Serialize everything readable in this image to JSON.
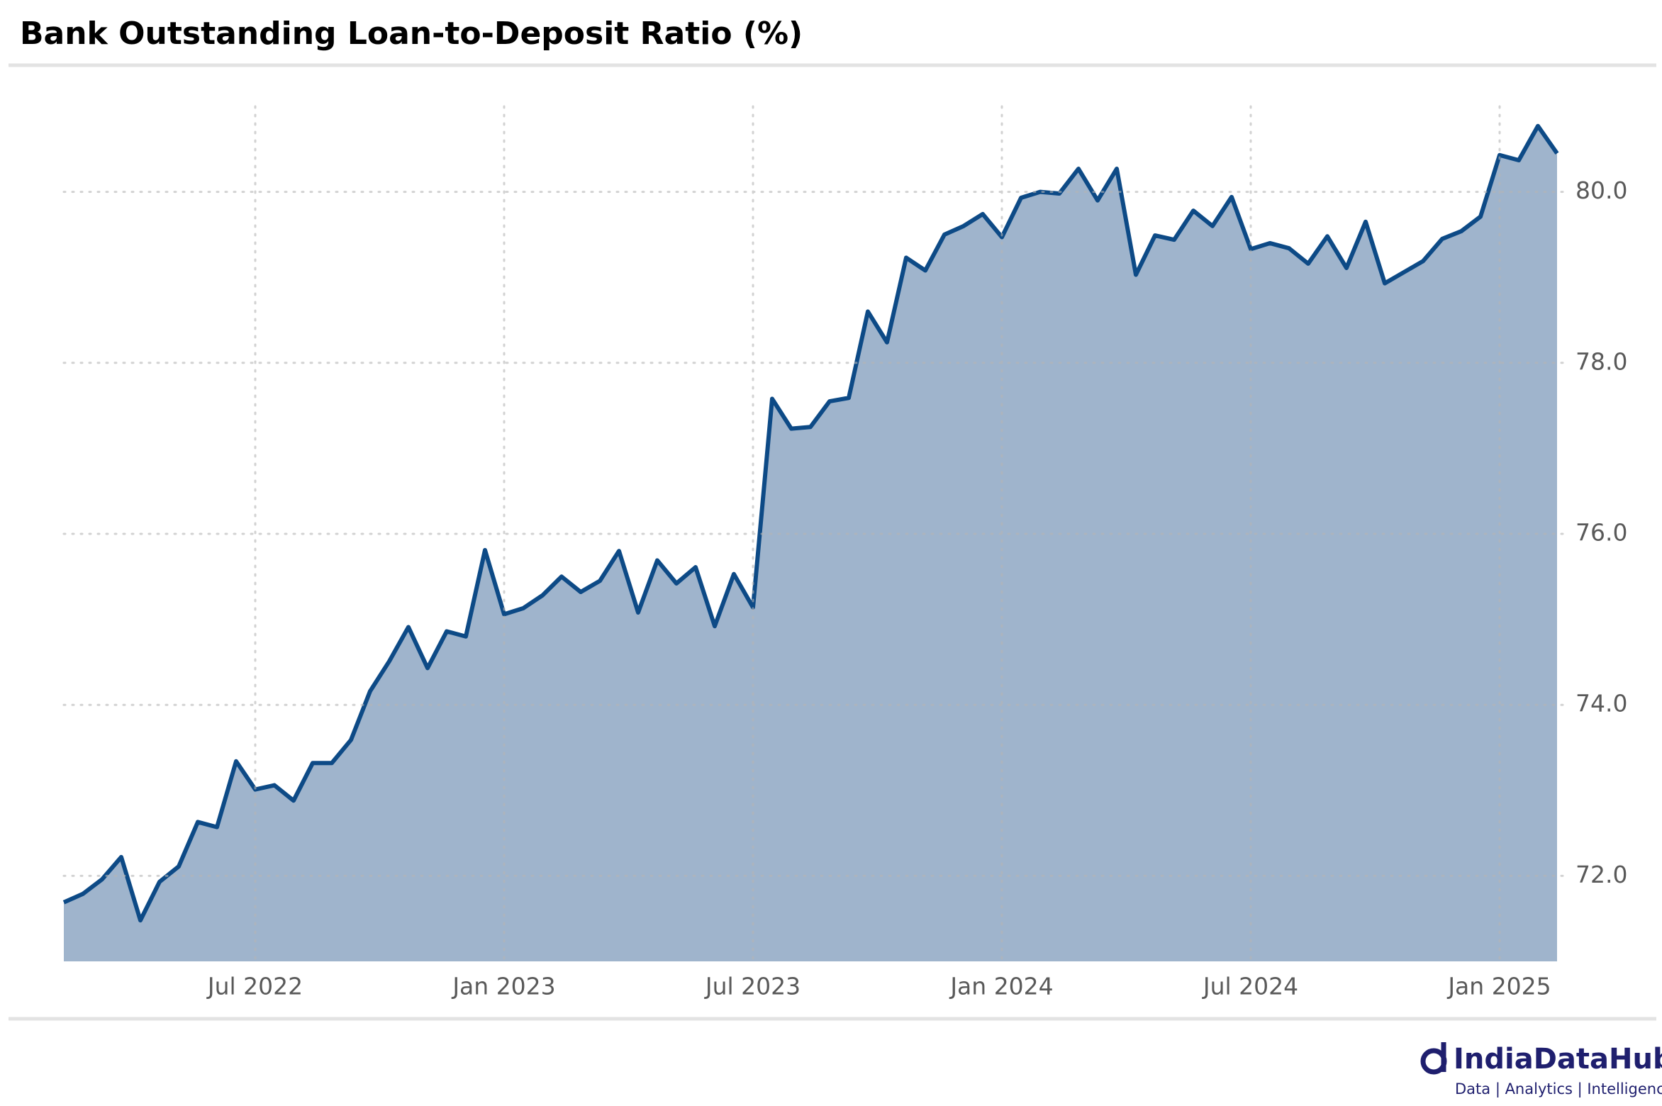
{
  "chart_data": {
    "type": "area",
    "title": "Bank Outstanding Loan-to-Deposit Ratio (%)",
    "categories": [
      null,
      null,
      null,
      null,
      null,
      null,
      null,
      null,
      null,
      null,
      "Jul 2022",
      null,
      null,
      null,
      null,
      null,
      null,
      null,
      null,
      null,
      null,
      null,
      null,
      "Jan 2023",
      null,
      null,
      null,
      null,
      null,
      null,
      null,
      null,
      null,
      null,
      null,
      null,
      "Jul 2023",
      null,
      null,
      null,
      null,
      null,
      null,
      null,
      null,
      null,
      null,
      null,
      null,
      "Jan 2024",
      null,
      null,
      null,
      null,
      null,
      null,
      null,
      null,
      null,
      null,
      null,
      null,
      "Jul 2024",
      null,
      null,
      null,
      null,
      null,
      null,
      null,
      null,
      null,
      null,
      null,
      null,
      "Jan 2025",
      null,
      null,
      null
    ],
    "series": [
      {
        "color": "#0d4a86",
        "fill": "#9fb4cc",
        "values": [
          71.69,
          71.79,
          71.96,
          72.22,
          71.48,
          71.93,
          72.11,
          72.63,
          72.57,
          73.34,
          73.01,
          73.06,
          72.88,
          73.32,
          73.32,
          73.59,
          74.16,
          74.51,
          74.91,
          74.43,
          74.86,
          74.8,
          75.81,
          75.06,
          75.13,
          75.28,
          75.5,
          75.32,
          75.45,
          75.8,
          75.08,
          75.69,
          75.42,
          75.61,
          74.92,
          75.53,
          75.14,
          77.58,
          77.23,
          77.25,
          77.55,
          77.59,
          78.6,
          78.24,
          79.23,
          79.08,
          79.5,
          79.6,
          79.74,
          79.47,
          79.93,
          80.0,
          79.98,
          80.27,
          79.9,
          80.27,
          79.03,
          79.49,
          79.44,
          79.78,
          79.6,
          79.94,
          79.33,
          79.4,
          79.34,
          79.16,
          79.48,
          79.11,
          79.65,
          78.93,
          79.06,
          79.19,
          79.45,
          79.54,
          79.71,
          80.43,
          80.37,
          80.77,
          80.45
        ]
      }
    ],
    "ylim": [
      71,
      81
    ],
    "yticks": [
      {
        "value": 72,
        "label": "72.0"
      },
      {
        "value": 74,
        "label": "74.0"
      },
      {
        "value": 76,
        "label": "76.0"
      },
      {
        "value": 78,
        "label": "78.0"
      },
      {
        "value": 80,
        "label": "80.0"
      }
    ],
    "grid": true,
    "logo_name": "IndiaDataHub",
    "logo_tagline": "Data | Analytics | Intelligence"
  }
}
